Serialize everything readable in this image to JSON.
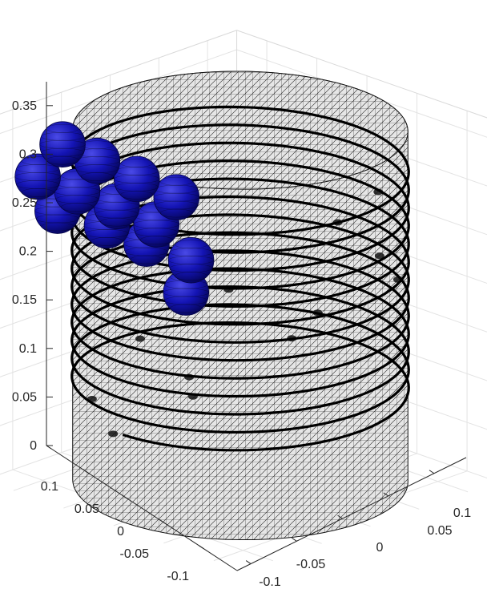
{
  "chart_data": {
    "type": "scatter",
    "title": "",
    "xlabel": "",
    "ylabel": "",
    "zlabel": "",
    "view": "3d-perspective",
    "grid": true,
    "legend": "none",
    "xlim": [
      -0.13,
      0.13
    ],
    "ylim": [
      -0.13,
      0.13
    ],
    "zlim": [
      0,
      0.37
    ],
    "z_ticks": [
      "0",
      "0.05",
      "0.1",
      "0.15",
      "0.2",
      "0.25",
      "0.3",
      "0.35"
    ],
    "x_ticks": [
      "0.1",
      "0.05",
      "0",
      "-0.05",
      "-0.1"
    ],
    "y_ticks": [
      "-0.1",
      "-0.05",
      "0",
      "0.05",
      "0.1"
    ],
    "surfaces": [
      {
        "kind": "cylinder-mesh",
        "center": [
          0,
          0
        ],
        "radius": 0.12,
        "height": 0.36,
        "face_color": "#bfbfbf",
        "edge_color": "#000000"
      }
    ],
    "helix": {
      "color": "#000000",
      "turns": 13,
      "z_start": 0.09,
      "z_end": 0.33
    },
    "spheres": {
      "color": "#1010a8",
      "radius": 0.022,
      "points": [
        [
          0.045,
          -0.02,
          0.3
        ],
        [
          0.06,
          -0.045,
          0.315
        ],
        [
          0.075,
          -0.07,
          0.33
        ],
        [
          0.09,
          -0.09,
          0.345
        ],
        [
          0.045,
          -0.04,
          0.265
        ],
        [
          0.06,
          -0.065,
          0.28
        ],
        [
          0.08,
          -0.085,
          0.295
        ],
        [
          0.1,
          -0.105,
          0.31
        ],
        [
          0.03,
          -0.02,
          0.23
        ],
        [
          0.05,
          -0.045,
          0.245
        ],
        [
          0.065,
          -0.07,
          0.26
        ],
        [
          0.09,
          -0.095,
          0.275
        ],
        [
          0.03,
          -0.025,
          0.195
        ]
      ]
    },
    "dark_points": [
      [
        -0.08,
        0.06,
        0.29
      ],
      [
        -0.1,
        0.0,
        0.23
      ],
      [
        -0.06,
        -0.07,
        0.15
      ],
      [
        0.0,
        -0.1,
        0.11
      ],
      [
        0.07,
        -0.08,
        0.08
      ],
      [
        0.11,
        -0.02,
        0.08
      ],
      [
        0.1,
        0.05,
        0.14
      ],
      [
        0.05,
        0.1,
        0.2
      ],
      [
        -0.03,
        0.11,
        0.26
      ],
      [
        -0.09,
        0.07,
        0.2
      ],
      [
        -0.1,
        -0.02,
        0.13
      ],
      [
        -0.04,
        -0.09,
        0.06
      ]
    ]
  }
}
